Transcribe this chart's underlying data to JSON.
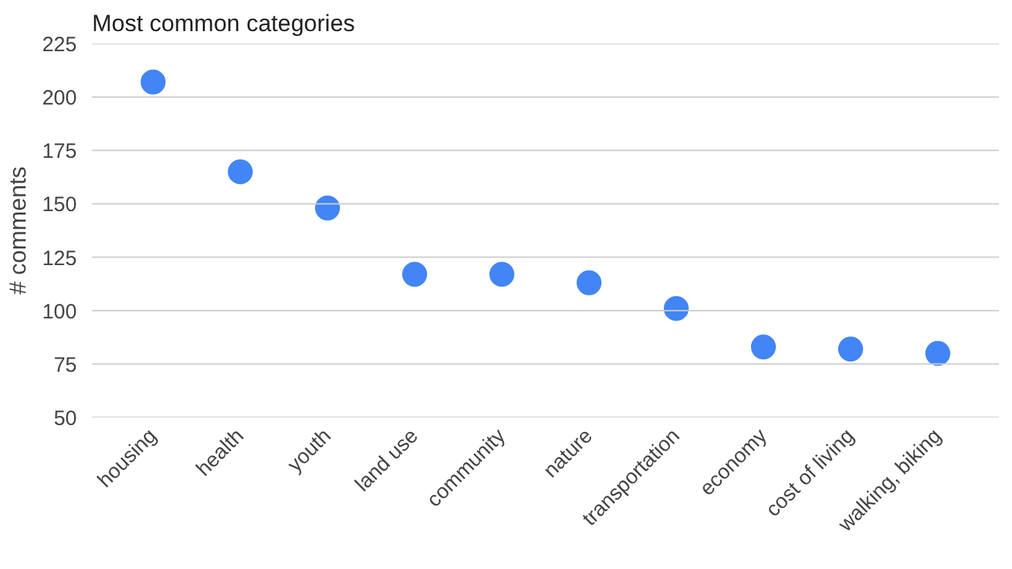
{
  "chart_data": {
    "type": "scatter",
    "title": "Most  common categories",
    "ylabel": "# comments",
    "categories": [
      "housing",
      "health",
      "youth",
      "land use",
      "community",
      "nature",
      "transportation",
      "economy",
      "cost of living",
      "walking, biking"
    ],
    "series": [
      {
        "color": "#4285f4",
        "values": [
          207,
          165,
          148,
          117,
          117,
          113,
          101,
          83,
          82,
          80
        ]
      }
    ],
    "ylim": [
      50,
      225
    ],
    "yticks": [
      50,
      75,
      100,
      125,
      150,
      175,
      200,
      225
    ],
    "grid": "y",
    "marker": "circle"
  }
}
